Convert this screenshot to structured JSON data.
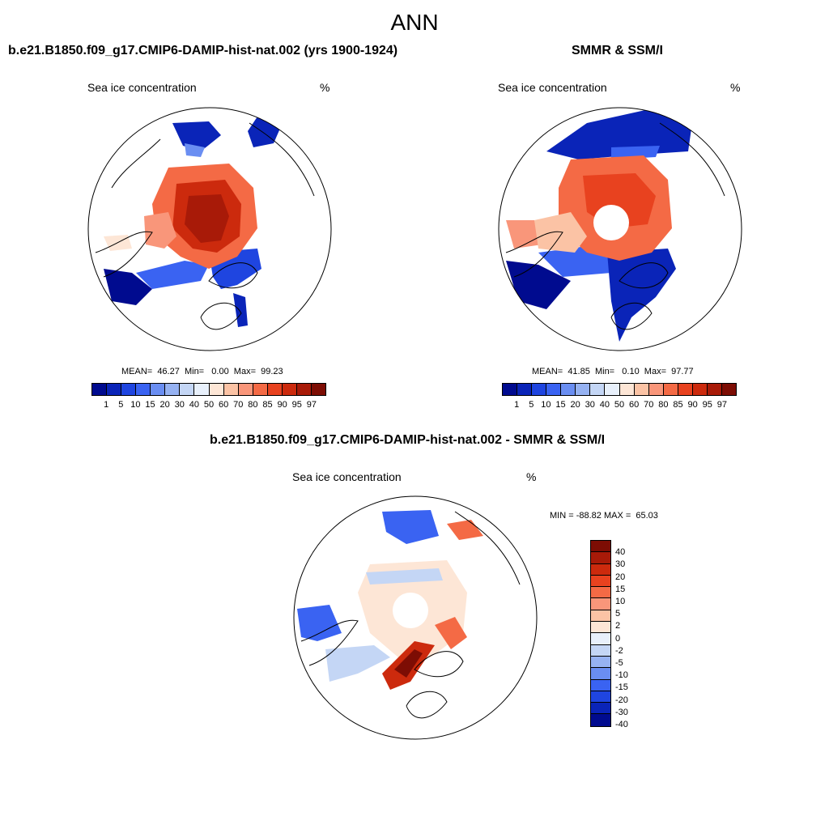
{
  "title": "ANN",
  "panels": {
    "model": {
      "title": "b.e21.B1850.f09_g17.CMIP6-DAMIP-hist-nat.002 (yrs 1900-1924)",
      "left_label": "Sea ice concentration",
      "right_label": "%",
      "stats": "MEAN=  46.27  Min=   0.00  Max=  99.23"
    },
    "obs": {
      "title": "SMMR & SSM/I",
      "left_label": "Sea ice concentration",
      "right_label": "%",
      "stats": "MEAN=  41.85  Min=   0.10  Max=  97.77"
    },
    "diff": {
      "title": "b.e21.B1850.f09_g17.CMIP6-DAMIP-hist-nat.002 - SMMR & SSM/I",
      "left_label": "Sea ice concentration",
      "right_label": "%",
      "stats": "MIN = -88.82 MAX =  65.03"
    }
  },
  "colorbar_abs": {
    "labels": [
      "1",
      "5",
      "10",
      "15",
      "20",
      "30",
      "40",
      "50",
      "60",
      "70",
      "80",
      "85",
      "90",
      "95",
      "97"
    ],
    "colors": [
      "#000b8f",
      "#0a24b8",
      "#1f45e0",
      "#3a63f2",
      "#6a8ef2",
      "#96b2f2",
      "#c4d6f5",
      "#e8f0fb",
      "#fde6d6",
      "#fbc3a5",
      "#f9967a",
      "#f46a45",
      "#e8421f",
      "#cc2a0d",
      "#a81a08",
      "#7d0d04"
    ]
  },
  "colorbar_diff": {
    "labels": [
      "40",
      "30",
      "20",
      "15",
      "10",
      "5",
      "2",
      "0",
      "-2",
      "-5",
      "-10",
      "-15",
      "-20",
      "-30",
      "-40"
    ],
    "colors": [
      "#7d0d04",
      "#a81a08",
      "#cc2a0d",
      "#e8421f",
      "#f46a45",
      "#f9967a",
      "#fbc3a5",
      "#fde6d6",
      "#e8f0fb",
      "#c4d6f5",
      "#96b2f2",
      "#6a8ef2",
      "#3a63f2",
      "#1f45e0",
      "#0a24b8",
      "#000b8f"
    ]
  }
}
